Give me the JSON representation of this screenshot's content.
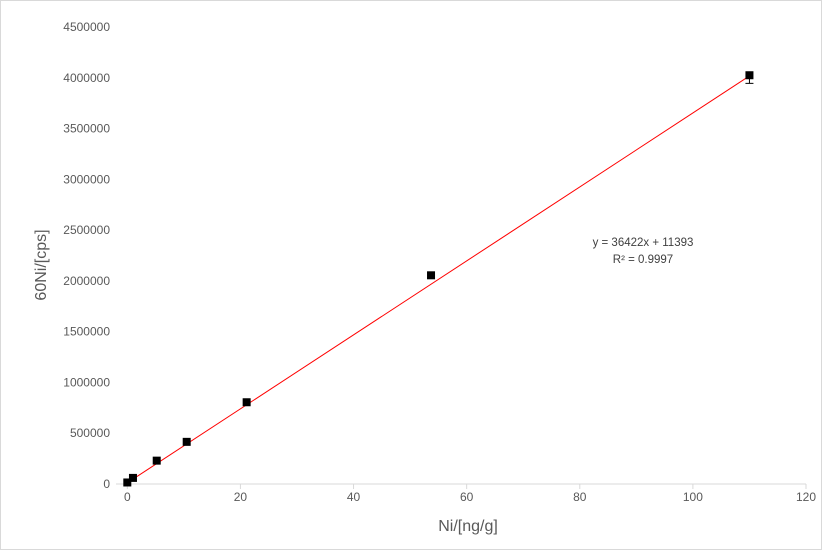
{
  "chart_data": {
    "type": "scatter",
    "title": "",
    "xlabel": "Ni/[ng/g]",
    "ylabel": "60Ni/[cps]",
    "xlim": [
      -2,
      120
    ],
    "ylim": [
      0,
      4500000
    ],
    "x_ticks": [
      0,
      20,
      40,
      60,
      80,
      100,
      120
    ],
    "y_ticks": [
      0,
      500000,
      1000000,
      1500000,
      2000000,
      2500000,
      3000000,
      3500000,
      4000000,
      4500000
    ],
    "x_tick_labels": [
      "0",
      "20",
      "40",
      "60",
      "80",
      "100",
      "120"
    ],
    "y_tick_labels": [
      "0",
      "500000",
      "1000000",
      "1500000",
      "2000000",
      "2500000",
      "3000000",
      "3500000",
      "4000000",
      "4500000"
    ],
    "grid": false,
    "series": [
      {
        "marker": "square",
        "color": "#000000",
        "x": [
          0,
          1,
          5.2,
          10.5,
          21.1,
          53.7,
          110
        ],
        "y": [
          15000,
          60000,
          230000,
          415000,
          805000,
          2055000,
          4025000
        ],
        "error_y": [
          0,
          0,
          0,
          0,
          0,
          25000,
          80000
        ]
      }
    ],
    "trendline": {
      "type": "linear",
      "slope": 36422,
      "intercept": 11393,
      "color": "#ff0000",
      "x_range": [
        0,
        110
      ],
      "equation_label": "y = 36422x + 11393",
      "r2_label": "R² = 0.9997"
    }
  }
}
